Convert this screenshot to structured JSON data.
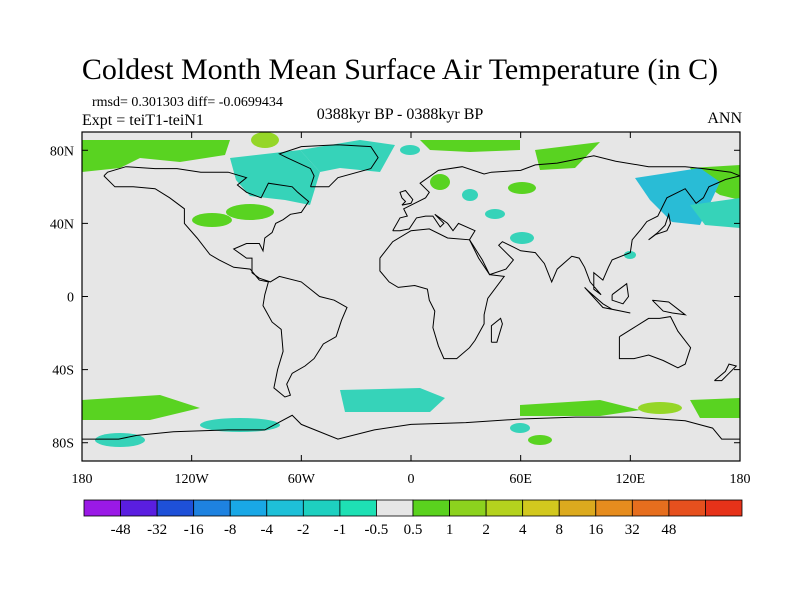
{
  "title": "Coldest Month Mean Surface Air Temperature (in C)",
  "stats_line": "rmsd= 0.301303  diff= -0.0699434",
  "experiment_line": "Expt = teiT1-teiN1",
  "period_line": "0388kyr BP - 0388kyr BP",
  "season_label": "ANN",
  "y_axis_ticks": [
    {
      "value": 80,
      "label": "80N"
    },
    {
      "value": 40,
      "label": "40N"
    },
    {
      "value": 0,
      "label": "0"
    },
    {
      "value": -40,
      "label": "40S"
    },
    {
      "value": -80,
      "label": "80S"
    }
  ],
  "x_axis_ticks": [
    {
      "value": -180,
      "label": "180"
    },
    {
      "value": -120,
      "label": "120W"
    },
    {
      "value": -60,
      "label": "60W"
    },
    {
      "value": 0,
      "label": "0"
    },
    {
      "value": 60,
      "label": "60E"
    },
    {
      "value": 120,
      "label": "120E"
    },
    {
      "value": 180,
      "label": "180"
    }
  ],
  "lat_range": [
    -90,
    90
  ],
  "lon_range": [
    -180,
    180
  ],
  "colorbar": {
    "colors": [
      "#9a19e6",
      "#5a1ee0",
      "#1e50d8",
      "#1e82e0",
      "#19a8e6",
      "#1ec0d8",
      "#1ed0c0",
      "#1ee0b4",
      "#e6e6e6",
      "#5ad21e",
      "#8cd21e",
      "#b4d21e",
      "#d2c81e",
      "#dcaa1e",
      "#e68c1e",
      "#e66e1e",
      "#e6501e",
      "#e63219"
    ],
    "labels": [
      "-48",
      "-32",
      "-16",
      "-8",
      "-4",
      "-2",
      "-1",
      "-0.5",
      "0.5",
      "1",
      "2",
      "4",
      "8",
      "16",
      "32",
      "48"
    ]
  },
  "colors": {
    "background_field": "#e6e6e6",
    "cool_anomaly": "#36d3b9",
    "cool_anomaly_strong": "#29bcd6",
    "warm_anomaly": "#59d321",
    "warm_anomaly_light": "#95d628",
    "coastline": "#000000"
  }
}
